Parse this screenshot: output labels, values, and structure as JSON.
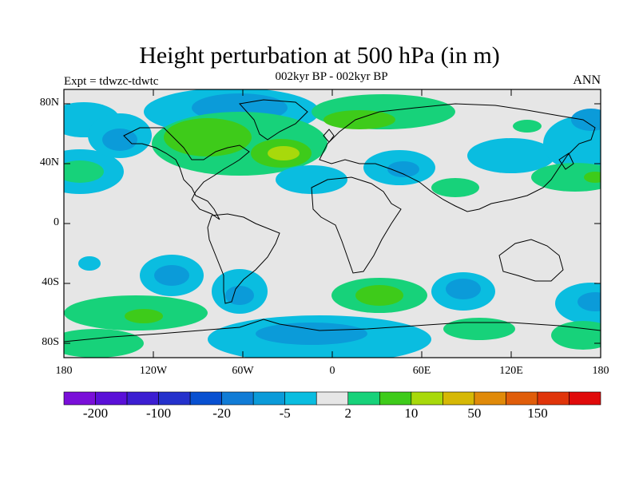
{
  "title": "Height perturbation at 500 hPa (in m)",
  "subtitle": "002kyr BP - 002kyr BP",
  "expt_label": "Expt = tdwzc-tdwtc",
  "season": "ANN",
  "lat_ticks": [
    "80N",
    "40N",
    "0",
    "40S",
    "80S"
  ],
  "lon_ticks": [
    "180",
    "120W",
    "60W",
    "0",
    "60E",
    "120E",
    "180"
  ],
  "colorbar": {
    "colors": [
      "#7a0fd9",
      "#5a10d8",
      "#3c1ed2",
      "#2431cc",
      "#0850d1",
      "#117cd6",
      "#0b9bd9",
      "#0abde0",
      "#e6e6e6",
      "#17d27a",
      "#3ecb1a",
      "#a8d90b",
      "#d6b805",
      "#e08a09",
      "#e05d0a",
      "#e0340a",
      "#e00a0a"
    ],
    "labels": [
      "-200",
      "-100",
      "-20",
      "-5",
      "2",
      "10",
      "50",
      "150"
    ]
  },
  "map": {
    "background_color": "#e6e6e6",
    "neg_light": "#0abde0",
    "neg_mid": "#0b9bd9",
    "pos_light": "#17d27a",
    "pos_mid": "#3ecb1a",
    "pos_strong": "#a8d90b"
  }
}
